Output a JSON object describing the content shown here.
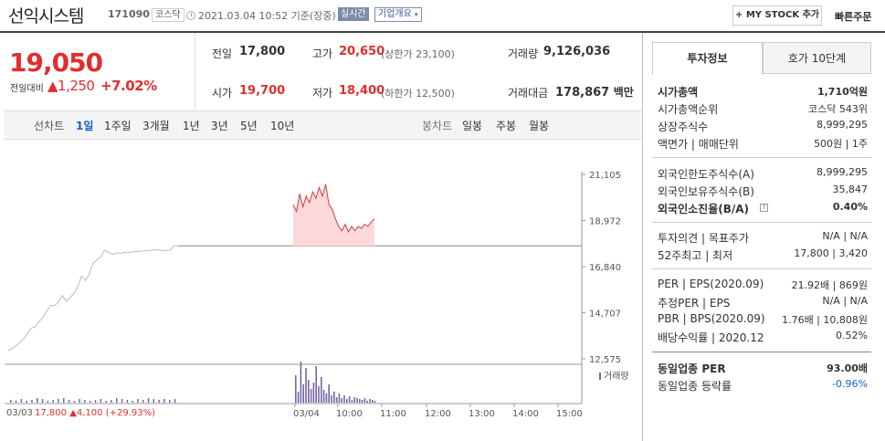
{
  "header": {
    "name": "선익시스템",
    "code": "171090",
    "market": "코스닥",
    "datetime": "2021.03.04 10:52",
    "basis": "기준(장중)",
    "realtime": "실시간",
    "overview": "기업개요",
    "mystock": "+ MY STOCK 추가",
    "quick": "빠른주문"
  },
  "price": {
    "current": "19,050",
    "change_label": "전일대비",
    "change": "▲1,250",
    "rate": "+7.02%"
  },
  "summary": {
    "prev_label": "전일",
    "prev": "17,800",
    "high_label": "고가",
    "high": "20,650",
    "upper": "(상한가 23,100)",
    "volume_label": "거래량",
    "volume": "9,126,036",
    "open_label": "시가",
    "open": "19,700",
    "low_label": "저가",
    "low": "18,400",
    "lower": "(하한가 12,500)",
    "amount_label": "거래대금",
    "amount": "178,867",
    "amount_unit": "백만"
  },
  "chart_tabs": {
    "line_label": "선차트",
    "periods": [
      "1일",
      "1주일",
      "3개월",
      "1년",
      "3년",
      "5년",
      "10년"
    ],
    "candle_label": "봉차트",
    "candles": [
      "일봉",
      "주봉",
      "월봉"
    ]
  },
  "chart": {
    "y_ticks": [
      "21,105",
      "18,972",
      "16,840",
      "14,707",
      "12,575"
    ],
    "x_ticks": [
      "03/04",
      "10:00",
      "11:00",
      "12:00",
      "13:00",
      "14:00",
      "15:00"
    ],
    "volume_label": "거래량",
    "prev_day": "03/03",
    "prev_close": "17,800",
    "prev_change": "▲4,100",
    "prev_rate": "(+29.93%)"
  },
  "chart_data": {
    "type": "line",
    "title": "",
    "ylim": [
      12575,
      21105
    ],
    "reference_price": 17800,
    "series": [
      {
        "name": "03/03",
        "values": [
          12950,
          13050,
          13180,
          13320,
          13500,
          13750,
          14000,
          14050,
          14300,
          14500,
          14800,
          15050,
          15030,
          15200,
          15500,
          15250,
          15400,
          15600,
          15900,
          16400,
          16200,
          16500,
          17000,
          17150,
          17300,
          17600,
          17500,
          17400,
          17480,
          17450,
          17500,
          17480,
          17520,
          17530,
          17550,
          17560,
          17580,
          17600,
          17610,
          17620,
          17580,
          17590,
          17610,
          17800,
          17800
        ]
      },
      {
        "name": "03/04",
        "values": [
          19700,
          19400,
          20200,
          19600,
          20100,
          19800,
          20300,
          20000,
          20500,
          20100,
          20650,
          19700,
          19500,
          19050,
          18700,
          18500,
          18800,
          18450,
          18700,
          18500,
          18700,
          18600,
          18800,
          18700,
          18900,
          19050
        ]
      }
    ]
  },
  "invest": {
    "tab1": "투자정보",
    "tab2": "호가 10단계",
    "rows": [
      {
        "l": "시가총액",
        "r": "1,710억원"
      },
      {
        "l": "시가총액순위",
        "r": "코스닥 543위"
      },
      {
        "l": "상장주식수",
        "r": "8,999,295"
      },
      {
        "l": "액면가 | 매매단위",
        "r": "500원 | 1주"
      },
      {
        "l": "외국인한도주식수(A)",
        "r": "8,999,295"
      },
      {
        "l": "외국인보유주식수(B)",
        "r": "35,847"
      },
      {
        "l": "외국인소진율(B/A)",
        "r": "0.40%"
      },
      {
        "l": "투자의견 | 목표주가",
        "r": "N/A | N/A"
      },
      {
        "l": "52주최고 | 최저",
        "r": "17,800 | 3,420"
      },
      {
        "l": "PER | EPS(2020.09)",
        "r": "21.92배 | 869원"
      },
      {
        "l": "추정PER | EPS",
        "r": "N/A | N/A"
      },
      {
        "l": "PBR | BPS(2020.09)",
        "r": "1.76배 | 10,808원"
      },
      {
        "l": "배당수익률 | 2020.12",
        "r": "0.52%"
      },
      {
        "l": "동일업종 PER",
        "r": "93.00배"
      },
      {
        "l": "동일업종 등락률",
        "r": "-0.96%"
      }
    ]
  },
  "colors": {
    "up": "#e12d2d",
    "down": "#1a5fc8",
    "line_prev": "#bbbbbb",
    "line_today": "#d63a3a",
    "fill_today": "#fbd9db",
    "volume": "#7565a8"
  }
}
